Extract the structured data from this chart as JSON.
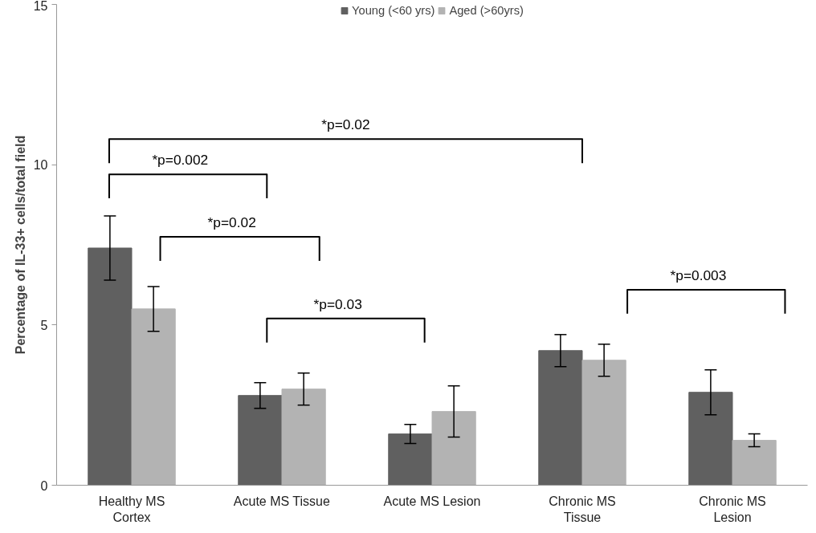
{
  "chart_data": {
    "type": "bar",
    "ylabel": "Percentage of IL-33+ cells/total field",
    "categories": [
      "Healthy MS Cortex",
      "Acute MS Tissue",
      "Acute MS Lesion",
      "Chronic MS Tissue",
      "Chronic MS Lesion"
    ],
    "series": [
      {
        "name": "Young (<60 yrs)",
        "color": "#606060",
        "values": [
          7.4,
          2.8,
          1.6,
          4.2,
          2.9
        ],
        "errors": [
          1.0,
          0.4,
          0.3,
          0.5,
          0.7
        ]
      },
      {
        "name": "Aged (>60yrs)",
        "color": "#b3b3b3",
        "values": [
          5.5,
          3.0,
          2.3,
          3.9,
          1.4
        ],
        "errors": [
          0.7,
          0.5,
          0.8,
          0.5,
          0.2
        ]
      }
    ],
    "ylim": [
      0,
      15
    ],
    "yticks": [
      0,
      5,
      10,
      15
    ],
    "grid": false,
    "legend": "top",
    "annotations": [
      "*p=0.02",
      "*p=0.002",
      "*p=0.02",
      "*p=0.03",
      "*p=0.003"
    ]
  }
}
